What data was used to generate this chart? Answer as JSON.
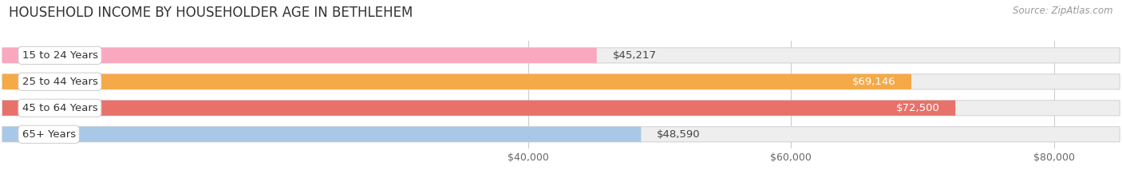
{
  "title": "HOUSEHOLD INCOME BY HOUSEHOLDER AGE IN BETHLEHEM",
  "source": "Source: ZipAtlas.com",
  "categories": [
    "15 to 24 Years",
    "25 to 44 Years",
    "45 to 64 Years",
    "65+ Years"
  ],
  "values": [
    45217,
    69146,
    72500,
    48590
  ],
  "bar_colors": [
    "#f9a8c0",
    "#f5a947",
    "#e8726a",
    "#a8c8e8"
  ],
  "bar_bg_color": "#eeeeee",
  "x_min": 0,
  "x_max": 85000,
  "xticks": [
    40000,
    60000,
    80000
  ],
  "xtick_labels": [
    "$40,000",
    "$60,000",
    "$80,000"
  ],
  "value_labels": [
    "$45,217",
    "$69,146",
    "$72,500",
    "$48,590"
  ],
  "bar_height": 0.58,
  "background_color": "#ffffff",
  "title_fontsize": 12,
  "source_fontsize": 8.5,
  "label_fontsize": 9.5,
  "value_fontsize": 9.5,
  "tick_fontsize": 9
}
